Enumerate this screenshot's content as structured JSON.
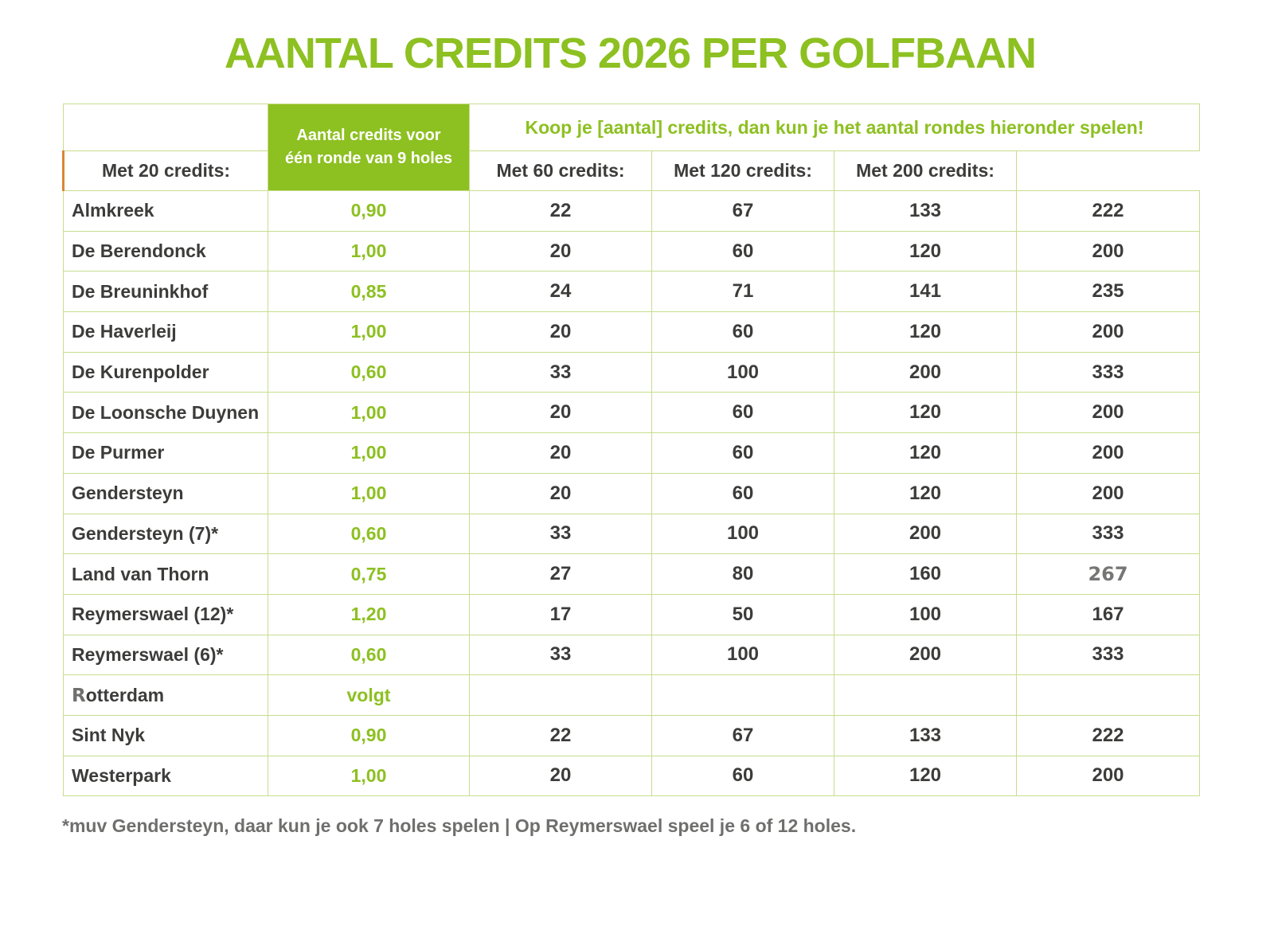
{
  "title": "AANTAL CREDITS 2026 PER GOLFBAAN",
  "colors": {
    "brand_green": "#8DC021",
    "border_green": "#C7DD8E",
    "dark_text": "#3C3C3B",
    "muted_grey": "#6F6F6E",
    "header_text_white": "#FFFFFF",
    "orange_accent": "#DC8633"
  },
  "table": {
    "credits_column_header_lines": [
      "Aantal credits voor",
      "één ronde van 9 holes"
    ],
    "span_header": "Koop je [aantal] credits, dan kun je het aantal rondes hieronder spelen!",
    "value_column_headers": [
      "Met 20 credits:",
      "Met 60 credits:",
      "Met 120 credits:",
      "Met 200 credits:"
    ],
    "rows": [
      {
        "name": "Almkreek",
        "credits": "0,90",
        "values": [
          "22",
          "67",
          "133",
          "222"
        ]
      },
      {
        "name": "De Berendonck",
        "credits": "1,00",
        "values": [
          "20",
          "60",
          "120",
          "200"
        ]
      },
      {
        "name": "De Breuninkhof",
        "credits": "0,85",
        "values": [
          "24",
          "71",
          "141",
          "235"
        ]
      },
      {
        "name": "De Haverleij",
        "credits": "1,00",
        "values": [
          "20",
          "60",
          "120",
          "200"
        ]
      },
      {
        "name": "De Kurenpolder",
        "credits": "0,60",
        "values": [
          "33",
          "100",
          "200",
          "333"
        ]
      },
      {
        "name": "De Loonsche Duynen",
        "credits": "1,00",
        "values": [
          "20",
          "60",
          "120",
          "200"
        ]
      },
      {
        "name": "De Purmer",
        "credits": "1,00",
        "values": [
          "20",
          "60",
          "120",
          "200"
        ]
      },
      {
        "name": "Gendersteyn",
        "credits": "1,00",
        "values": [
          "20",
          "60",
          "120",
          "200"
        ]
      },
      {
        "name": "Gendersteyn (7)*",
        "credits": "0,60",
        "values": [
          "33",
          "100",
          "200",
          "333"
        ]
      },
      {
        "name": "Land van Thorn",
        "credits": "0,75",
        "values": [
          "27",
          "80",
          "160",
          {
            "text": "267",
            "muted": true
          }
        ]
      },
      {
        "name": "Reymerswael (12)*",
        "credits": "1,20",
        "values": [
          "17",
          "50",
          "100",
          "167"
        ]
      },
      {
        "name": "Reymerswael (6)*",
        "credits": "0,60",
        "values": [
          "33",
          "100",
          "200",
          "333"
        ]
      },
      {
        "name": {
          "muted_prefix": "R",
          "rest": "otterdam"
        },
        "credits": "volgt",
        "values": [
          "",
          "",
          "",
          ""
        ]
      },
      {
        "name": "Sint Nyk",
        "credits": "0,90",
        "values": [
          "22",
          "67",
          "133",
          "222"
        ]
      },
      {
        "name": "Westerpark",
        "credits": "1,00",
        "values": [
          "20",
          "60",
          "120",
          "200"
        ]
      }
    ]
  },
  "footnote": "*muv Gendersteyn, daar kun je ook 7 holes spelen | Op Reymerswael speel je 6 of 12 holes."
}
